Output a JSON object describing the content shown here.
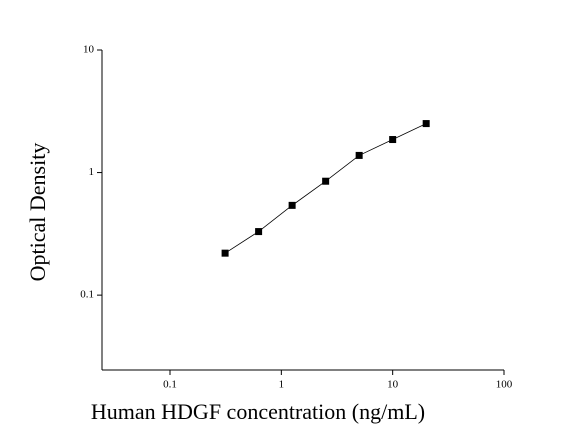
{
  "chart_data": {
    "type": "scatter",
    "x_label": "Human HDGF concentration (ng/mL)",
    "y_label": "Optical Density",
    "x_log": true,
    "y_log": true,
    "xlim": [
      0.0245,
      100
    ],
    "ylim": [
      0.0245,
      10
    ],
    "xticks": [
      0.1,
      1,
      10,
      100
    ],
    "yticks": [
      0.1,
      1,
      10
    ],
    "connect": true,
    "color": "#000000",
    "x": [
      0.3125,
      0.625,
      1.25,
      2.5,
      5,
      10,
      20
    ],
    "values": [
      0.22,
      0.33,
      0.54,
      0.85,
      1.38,
      1.86,
      2.51
    ]
  }
}
